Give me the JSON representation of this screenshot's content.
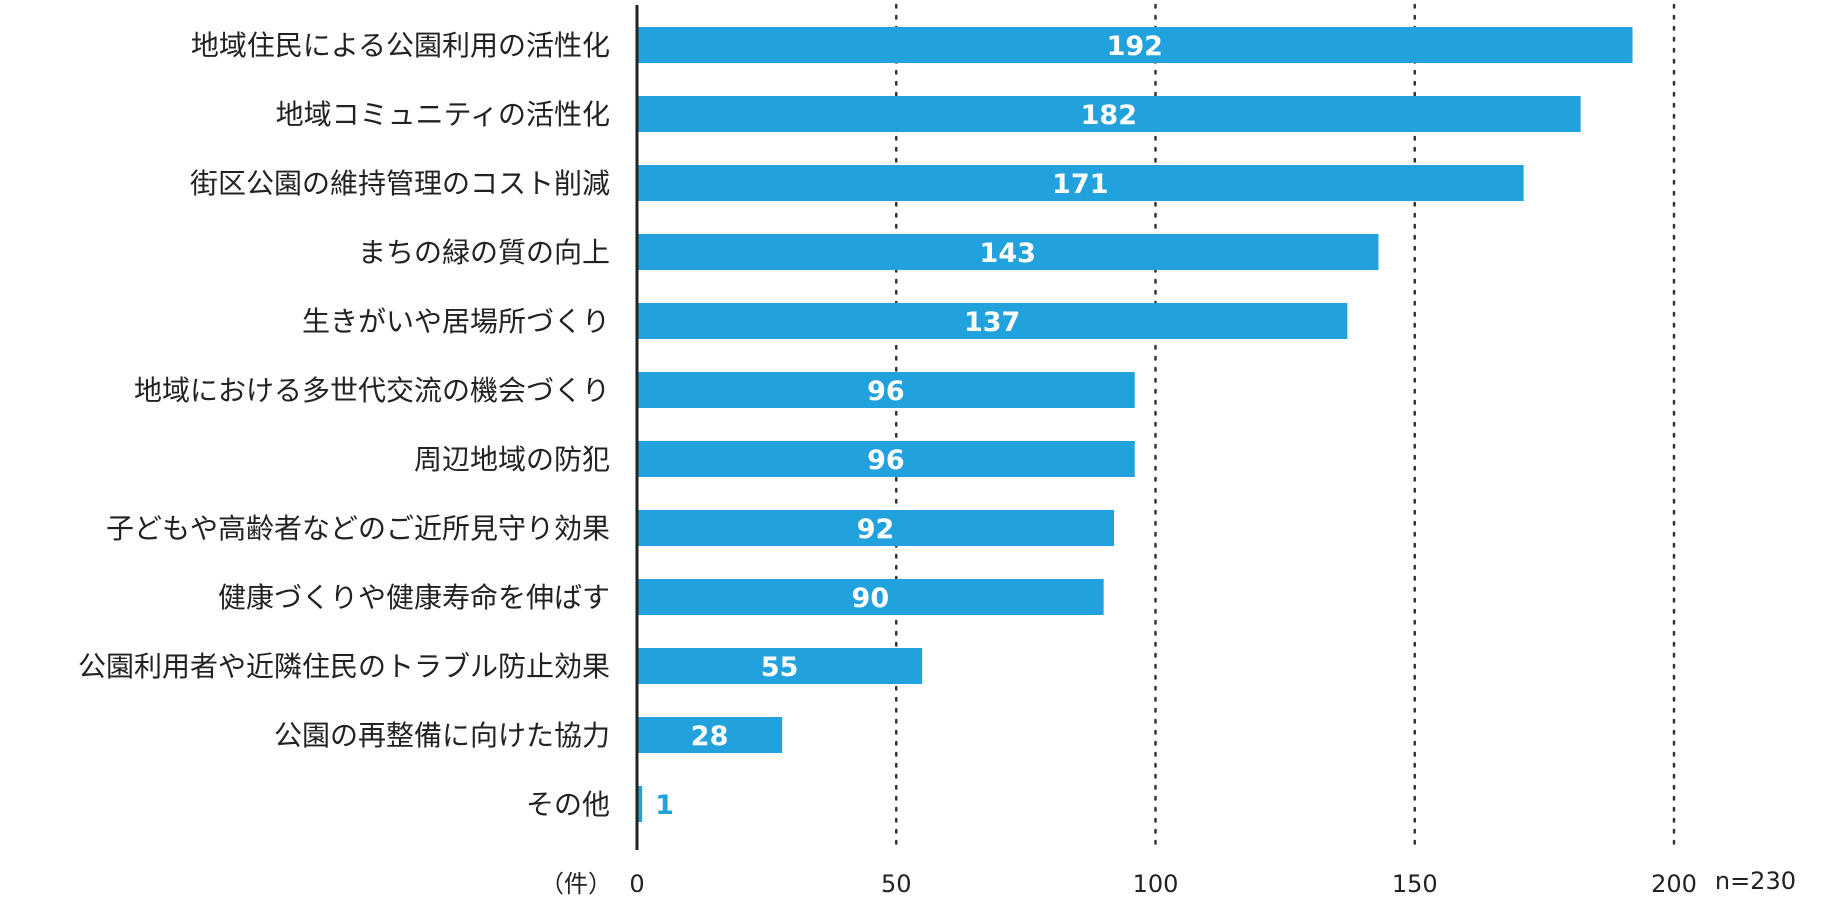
{
  "chart_data": {
    "type": "bar",
    "orientation": "horizontal",
    "categories": [
      "地域住民による公園利用の活性化",
      "地域コミュニティの活性化",
      "街区公園の維持管理のコスト削減",
      "まちの緑の質の向上",
      "生きがいや居場所づくり",
      "地域における多世代交流の機会づくり",
      "周辺地域の防犯",
      "子どもや高齢者などのご近所見守り効果",
      "健康づくりや健康寿命を伸ばす",
      "公園利用者や近隣住民のトラブル防止効果",
      "公園の再整備に向けた協力",
      "その他"
    ],
    "values": [
      192,
      182,
      171,
      143,
      137,
      96,
      96,
      92,
      90,
      55,
      28,
      1
    ],
    "xlim": [
      0,
      200
    ],
    "x_ticks": [
      0,
      50,
      100,
      150,
      200
    ],
    "x_unit_label": "（件）",
    "sample_size_label": "n=230",
    "grid": "vertical dotted",
    "bar_color": "#22a2dc"
  }
}
